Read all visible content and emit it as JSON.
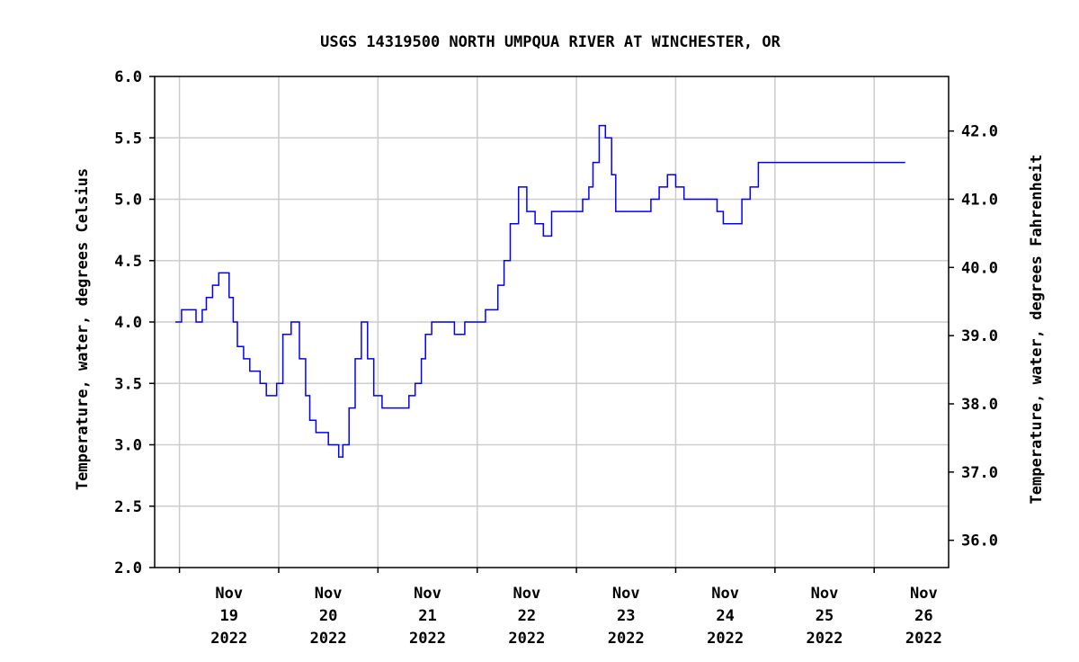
{
  "chart_data": {
    "type": "line",
    "title": "USGS 14319500 NORTH UMPQUA RIVER AT WINCHESTER, OR",
    "ylabel": "Temperature, water, degrees Celsius",
    "ylabel_right": "Temperature, water, degrees Fahrenheit",
    "ylim": [
      2.0,
      6.0
    ],
    "yticks": [
      "2.0",
      "2.5",
      "3.0",
      "3.5",
      "4.0",
      "4.5",
      "5.0",
      "5.5",
      "6.0"
    ],
    "yticks_right": [
      "36.0",
      "37.0",
      "38.0",
      "39.0",
      "40.0",
      "41.0",
      "42.0"
    ],
    "x_ticks": [
      {
        "month": "Nov",
        "day": "19",
        "year": "2022"
      },
      {
        "month": "Nov",
        "day": "20",
        "year": "2022"
      },
      {
        "month": "Nov",
        "day": "21",
        "year": "2022"
      },
      {
        "month": "Nov",
        "day": "22",
        "year": "2022"
      },
      {
        "month": "Nov",
        "day": "23",
        "year": "2022"
      },
      {
        "month": "Nov",
        "day": "24",
        "year": "2022"
      },
      {
        "month": "Nov",
        "day": "25",
        "year": "2022"
      },
      {
        "month": "Nov",
        "day": "26",
        "year": "2022"
      }
    ],
    "grid": true,
    "line_color": "#0000ff",
    "series": [
      {
        "x": [
          "2022-11-18 23:00",
          "2022-11-19 00:30",
          "2022-11-19 01:30",
          "2022-11-19 03:00",
          "2022-11-19 04:00",
          "2022-11-19 05:30",
          "2022-11-19 06:30",
          "2022-11-19 08:00",
          "2022-11-19 09:30",
          "2022-11-19 11:00",
          "2022-11-19 12:00",
          "2022-11-19 13:00",
          "2022-11-19 14:00",
          "2022-11-19 15:30",
          "2022-11-19 17:00",
          "2022-11-19 18:30",
          "2022-11-19 19:30",
          "2022-11-19 21:00",
          "2022-11-19 22:00",
          "2022-11-19 23:30",
          "2022-11-20 01:00",
          "2022-11-20 03:00",
          "2022-11-20 05:00",
          "2022-11-20 06:30",
          "2022-11-20 07:30",
          "2022-11-20 09:00",
          "2022-11-20 10:30",
          "2022-11-20 12:00",
          "2022-11-20 13:30",
          "2022-11-20 14:30",
          "2022-11-20 15:30",
          "2022-11-20 17:00",
          "2022-11-20 18:30",
          "2022-11-20 20:00",
          "2022-11-20 21:30",
          "2022-11-20 23:00",
          "2022-11-21 01:00",
          "2022-11-21 02:30",
          "2022-11-21 03:30",
          "2022-11-21 04:30",
          "2022-11-21 06:00",
          "2022-11-21 07:30",
          "2022-11-21 09:00",
          "2022-11-21 10:30",
          "2022-11-21 11:30",
          "2022-11-21 13:00",
          "2022-11-21 15:00",
          "2022-11-21 16:30",
          "2022-11-21 18:30",
          "2022-11-21 21:00",
          "2022-11-22 00:00",
          "2022-11-22 02:00",
          "2022-11-22 03:30",
          "2022-11-22 05:00",
          "2022-11-22 06:30",
          "2022-11-22 08:00",
          "2022-11-22 10:00",
          "2022-11-22 12:00",
          "2022-11-22 14:00",
          "2022-11-22 16:00",
          "2022-11-22 18:00",
          "2022-11-22 20:00",
          "2022-11-22 22:00",
          "2022-11-23 00:00",
          "2022-11-23 01:30",
          "2022-11-23 03:00",
          "2022-11-23 04:00",
          "2022-11-23 05:30",
          "2022-11-23 07:00",
          "2022-11-23 08:30",
          "2022-11-23 09:30",
          "2022-11-23 11:00",
          "2022-11-23 12:30",
          "2022-11-23 14:00",
          "2022-11-23 15:30",
          "2022-11-23 17:00",
          "2022-11-23 18:00",
          "2022-11-23 20:00",
          "2022-11-23 22:00",
          "2022-11-24 00:00",
          "2022-11-24 02:00",
          "2022-11-24 04:00",
          "2022-11-24 06:00",
          "2022-11-24 08:00",
          "2022-11-24 10:00",
          "2022-11-24 11:30",
          "2022-11-24 13:00",
          "2022-11-24 14:30",
          "2022-11-24 16:00",
          "2022-11-24 18:00",
          "2022-11-24 20:00",
          "2022-11-24 22:00",
          "2022-11-25 00:00",
          "2022-11-25 02:00",
          "2022-11-25 04:00",
          "2022-11-25 06:00",
          "2022-11-25 08:00",
          "2022-11-25 10:00",
          "2022-11-25 12:00",
          "2022-11-25 14:00",
          "2022-11-25 16:00",
          "2022-11-25 18:00",
          "2022-11-25 20:00",
          "2022-11-25 22:00",
          "2022-11-26 00:00",
          "2022-11-26 01:30",
          "2022-11-26 03:00",
          "2022-11-26 04:30",
          "2022-11-26 06:00",
          "2022-11-26 07:30"
        ],
        "y": [
          4.0,
          4.1,
          4.1,
          4.1,
          4.0,
          4.1,
          4.2,
          4.3,
          4.4,
          4.4,
          4.2,
          4.0,
          3.8,
          3.7,
          3.6,
          3.6,
          3.5,
          3.4,
          3.4,
          3.5,
          3.9,
          4.0,
          3.7,
          3.4,
          3.2,
          3.1,
          3.1,
          3.0,
          3.0,
          2.9,
          3.0,
          3.3,
          3.7,
          4.0,
          3.7,
          3.4,
          3.3,
          3.3,
          3.3,
          3.3,
          3.3,
          3.4,
          3.5,
          3.7,
          3.9,
          4.0,
          4.0,
          4.0,
          3.9,
          4.0,
          4.0,
          4.1,
          4.1,
          4.3,
          4.5,
          4.8,
          5.1,
          4.9,
          4.8,
          4.7,
          4.9,
          4.9,
          4.9,
          4.9,
          5.0,
          5.1,
          5.3,
          5.6,
          5.5,
          5.2,
          4.9,
          4.9,
          4.9,
          4.9,
          4.9,
          4.9,
          5.0,
          5.1,
          5.2,
          5.1,
          5.0,
          5.0,
          5.0,
          5.0,
          4.9,
          4.8,
          4.8,
          4.8,
          5.0,
          5.1,
          5.3,
          5.3,
          5.3,
          5.3,
          5.3,
          5.3,
          5.3,
          5.3,
          5.3,
          5.3,
          5.3,
          5.3,
          5.3,
          5.3,
          5.3,
          5.3,
          5.3,
          5.3,
          5.3,
          5.3
        ]
      }
    ]
  }
}
